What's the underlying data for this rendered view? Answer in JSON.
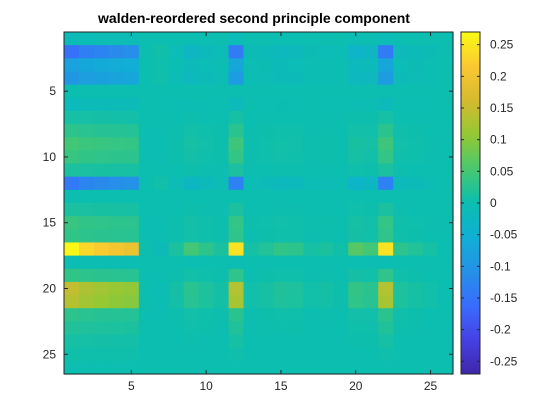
{
  "chart_data": {
    "type": "heatmap",
    "title": "walden-reordered second principle component",
    "xlabel": "",
    "ylabel": "",
    "n_rows": 26,
    "n_cols": 26,
    "xlim": [
      0.5,
      26.5
    ],
    "ylim": [
      0.5,
      26.5
    ],
    "y_reversed": true,
    "xticks": [
      5,
      10,
      15,
      20,
      25
    ],
    "yticks": [
      5,
      10,
      15,
      20,
      25
    ],
    "colormap": "parula",
    "clim": [
      -0.27,
      0.27
    ],
    "colorbar": {
      "location": "right",
      "ticks": [
        0.25,
        0.2,
        0.15,
        0.1,
        0.05,
        0,
        -0.05,
        -0.1,
        -0.15,
        -0.2,
        -0.25
      ],
      "tick_labels": [
        "0.25",
        "0.2",
        "0.15",
        "0.1",
        "0.05",
        "0",
        "-0.05",
        "-0.1",
        "-0.15",
        "-0.2",
        "-0.25"
      ]
    },
    "row_loadings": [
      -0.02,
      -0.32,
      -0.16,
      -0.2,
      0,
      -0.03,
      0.02,
      0.06,
      0.1,
      0.08,
      0.03,
      -0.3,
      0,
      0.03,
      0.08,
      0.07,
      0.55,
      -0.01,
      0.07,
      0.3,
      0.28,
      0.06,
      0.04,
      0.02,
      0.01,
      0
    ],
    "col_loadings": [
      0.55,
      0.48,
      0.45,
      0.42,
      0.4,
      0,
      -0.02,
      0.03,
      0.1,
      0.06,
      0.03,
      0.5,
      0.02,
      0.04,
      0.07,
      0.06,
      0.02,
      0.03,
      0.01,
      0.13,
      0.1,
      0.5,
      0.06,
      0.04,
      0.02,
      0
    ],
    "scale": 0.88
  }
}
